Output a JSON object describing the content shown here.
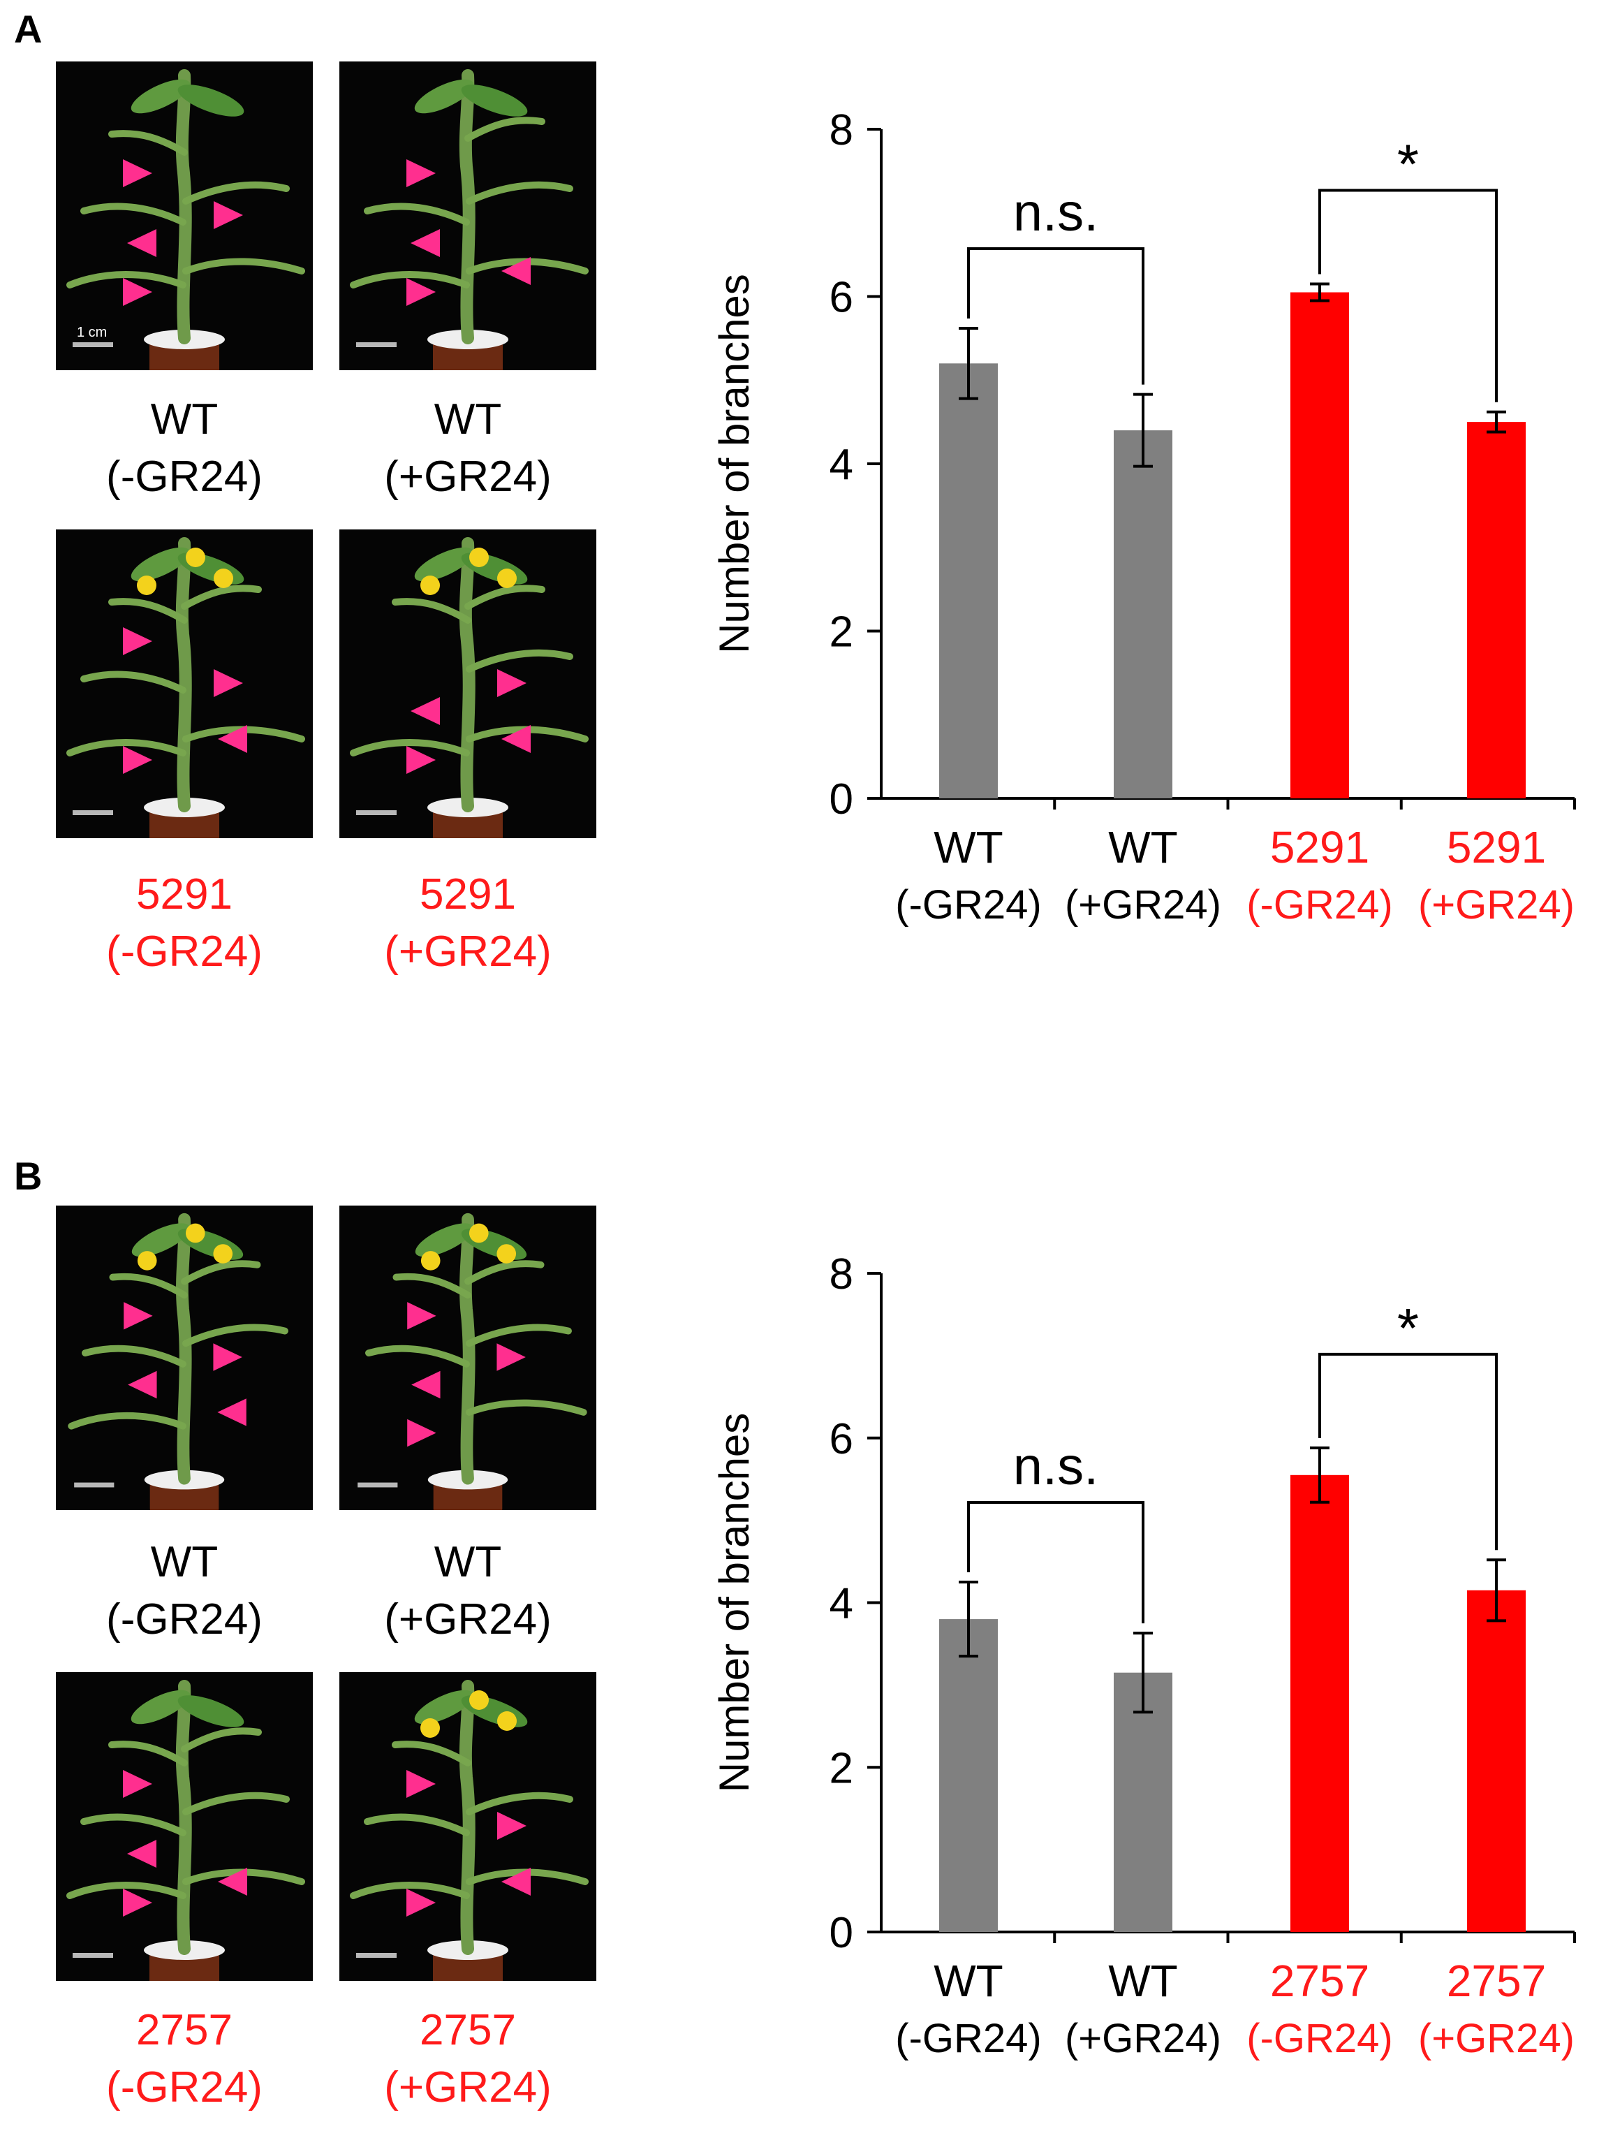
{
  "panels": [
    {
      "letter": "A",
      "photos": [
        {
          "line1": "WT",
          "line2": "(-GR24)",
          "color": "#000000",
          "scalebar": "1 cm",
          "flowers": false
        },
        {
          "line1": "WT",
          "line2": "(+GR24)",
          "color": "#000000",
          "scalebar": "",
          "flowers": false
        },
        {
          "line1": "5291",
          "line2": "(-GR24)",
          "color": "#ff1a1a",
          "scalebar": "",
          "flowers": true
        },
        {
          "line1": "5291",
          "line2": "(+GR24)",
          "color": "#ff1a1a",
          "scalebar": "",
          "flowers": true
        }
      ]
    },
    {
      "letter": "B",
      "photos": [
        {
          "line1": "WT",
          "line2": "(-GR24)",
          "color": "#000000",
          "scalebar": "",
          "flowers": true
        },
        {
          "line1": "WT",
          "line2": "(+GR24)",
          "color": "#000000",
          "scalebar": "",
          "flowers": true
        },
        {
          "line1": "2757",
          "line2": "(-GR24)",
          "color": "#ff1a1a",
          "scalebar": "",
          "flowers": false
        },
        {
          "line1": "2757",
          "line2": "(+GR24)",
          "color": "#ff1a1a",
          "scalebar": "",
          "flowers": true
        }
      ]
    }
  ],
  "chart_data": [
    {
      "type": "bar",
      "panel": "A",
      "ylabel": "Number of branches",
      "ylim": [
        0,
        8
      ],
      "yticks": [
        0,
        2,
        4,
        6,
        8
      ],
      "categories": [
        {
          "line1": "WT",
          "line2": "(-GR24)",
          "color": "#000000"
        },
        {
          "line1": "WT",
          "line2": "(+GR24)",
          "color": "#000000"
        },
        {
          "line1": "5291",
          "line2": "(-GR24)",
          "color": "#ff1a1a"
        },
        {
          "line1": "5291",
          "line2": "(+GR24)",
          "color": "#ff1a1a"
        }
      ],
      "values": [
        5.2,
        4.4,
        6.05,
        4.5
      ],
      "errors": [
        0.42,
        0.43,
        0.1,
        0.12
      ],
      "bar_colors": [
        "#808080",
        "#808080",
        "#ff0000",
        "#ff0000"
      ],
      "significance": [
        {
          "from": 0,
          "to": 1,
          "label": "n.s."
        },
        {
          "from": 2,
          "to": 3,
          "label": "*"
        }
      ]
    },
    {
      "type": "bar",
      "panel": "B",
      "ylabel": "Number of branches",
      "ylim": [
        0,
        8
      ],
      "yticks": [
        0,
        2,
        4,
        6,
        8
      ],
      "categories": [
        {
          "line1": "WT",
          "line2": "(-GR24)",
          "color": "#000000"
        },
        {
          "line1": "WT",
          "line2": "(+GR24)",
          "color": "#000000"
        },
        {
          "line1": "2757",
          "line2": "(-GR24)",
          "color": "#ff1a1a"
        },
        {
          "line1": "2757",
          "line2": "(+GR24)",
          "color": "#ff1a1a"
        }
      ],
      "values": [
        3.8,
        3.15,
        5.55,
        4.15
      ],
      "errors": [
        0.45,
        0.48,
        0.33,
        0.37
      ],
      "bar_colors": [
        "#808080",
        "#808080",
        "#ff0000",
        "#ff0000"
      ],
      "significance": [
        {
          "from": 0,
          "to": 1,
          "label": "n.s."
        },
        {
          "from": 2,
          "to": 3,
          "label": "*"
        }
      ]
    }
  ]
}
